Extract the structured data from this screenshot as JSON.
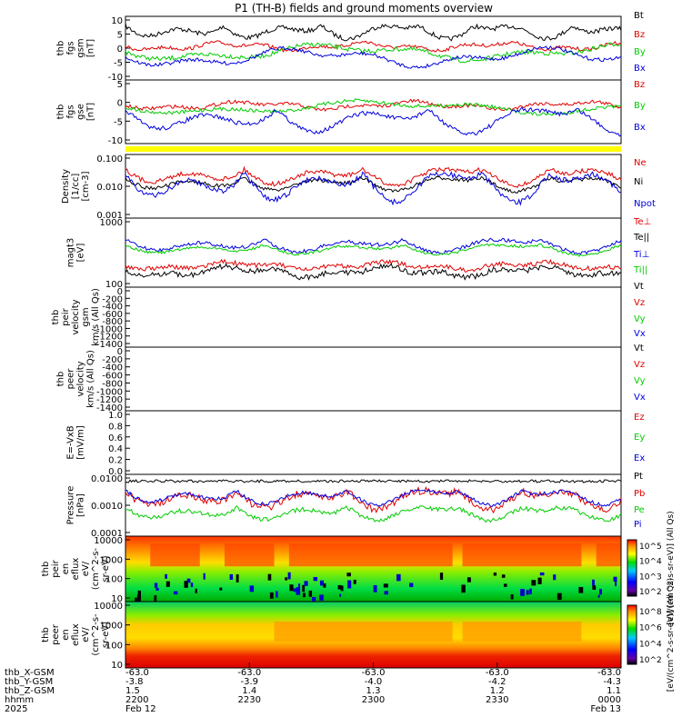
{
  "chart_data": {
    "type": "line",
    "title": "P1 (TH-B) fields and ground moments overview",
    "colors": {
      "black": "#000000",
      "red": "#e00000",
      "green": "#00cc00",
      "blue": "#0000dd",
      "yellow": "#ffff00"
    },
    "panels": [
      {
        "id": "fgs-gsm",
        "ylabel": [
          "thb",
          "fgs",
          "gsm",
          "[nT]"
        ],
        "yticks": [
          "10",
          "5",
          "0",
          "-5",
          "-10"
        ],
        "legend": [
          {
            "label": "Bt",
            "color": "black"
          },
          {
            "label": "Bz",
            "color": "red"
          },
          {
            "label": "By",
            "color": "green"
          },
          {
            "label": "Bx",
            "color": "blue"
          }
        ]
      },
      {
        "id": "fgs-gse",
        "ylabel": [
          "thb",
          "fgs",
          "gse",
          "[nT]"
        ],
        "yticks": [
          "5",
          "0",
          "-5",
          "-10"
        ],
        "legend": [
          {
            "label": "Bz",
            "color": "red"
          },
          {
            "label": "By",
            "color": "green"
          },
          {
            "label": "Bx",
            "color": "blue"
          }
        ]
      },
      {
        "id": "density",
        "ylabel": [
          "Density",
          "[1/cc]",
          "[cm-3]"
        ],
        "yticks": [
          "0.100",
          "0.010",
          "0.001"
        ],
        "log": true,
        "legend": [
          {
            "label": "Ne",
            "color": "red"
          },
          {
            "label": "Ni",
            "color": "black"
          },
          {
            "label": "Npot",
            "color": "blue"
          }
        ]
      },
      {
        "id": "temperature",
        "ylabel": [
          "magt3",
          "[eV]"
        ],
        "yticks": [
          "1000",
          "100"
        ],
        "log": true,
        "legend": [
          {
            "label": "Te⊥",
            "color": "red"
          },
          {
            "label": "Te||",
            "color": "black"
          },
          {
            "label": "Ti⊥",
            "color": "blue"
          },
          {
            "label": "Ti||",
            "color": "green"
          }
        ]
      },
      {
        "id": "peir-velocity",
        "ylabel": [
          "thb",
          "peir",
          "velocity",
          "gsm",
          "km/s (All Qs)"
        ],
        "yticks": [
          "0",
          "-200",
          "-400",
          "-600",
          "-800",
          "-1000",
          "-1200",
          "-1400"
        ],
        "legend": [
          {
            "label": "Vt",
            "color": "black"
          },
          {
            "label": "Vz",
            "color": "red"
          },
          {
            "label": "Vy",
            "color": "green"
          },
          {
            "label": "Vx",
            "color": "blue"
          }
        ]
      },
      {
        "id": "peer-velocity",
        "ylabel": [
          "thb",
          "peer",
          "velocity",
          "km/s (All Qs)"
        ],
        "yticks": [
          "0",
          "-200",
          "-400",
          "-600",
          "-800",
          "-1000",
          "-1200",
          "-1400"
        ],
        "legend": [
          {
            "label": "Vt",
            "color": "black"
          },
          {
            "label": "Vz",
            "color": "red"
          },
          {
            "label": "Vy",
            "color": "green"
          },
          {
            "label": "Vx",
            "color": "blue"
          }
        ]
      },
      {
        "id": "efield",
        "ylabel": [
          "E=-VxB",
          "[mV/m]"
        ],
        "yticks": [
          "1.0",
          "0.8",
          "0.6",
          "0.4",
          "0.2",
          "0.0"
        ],
        "legend": [
          {
            "label": "Ez",
            "color": "red"
          },
          {
            "label": "Ey",
            "color": "green"
          },
          {
            "label": "Ex",
            "color": "blue"
          }
        ]
      },
      {
        "id": "pressure",
        "ylabel": [
          "Pressure",
          "[nPa]"
        ],
        "yticks": [
          "0.0100",
          "0.0010",
          "0.0001"
        ],
        "log": true,
        "legend": [
          {
            "label": "Pt",
            "color": "black"
          },
          {
            "label": "Pb",
            "color": "red"
          },
          {
            "label": "Pe",
            "color": "green"
          },
          {
            "label": "Pi",
            "color": "blue"
          }
        ]
      },
      {
        "id": "peir-spec",
        "ylabel": [
          "thb",
          "peir",
          "en",
          "eflux",
          "eV/",
          "(cm^2-s-",
          "sr-eV)"
        ],
        "yticks": [
          "10000",
          "1000",
          "100",
          "10"
        ],
        "spectrogram": "ion"
      },
      {
        "id": "peer-spec",
        "ylabel": [
          "thb",
          "peer",
          "en",
          "eflux",
          "eV/",
          "(cm^2-s-",
          "sr-eV)"
        ],
        "yticks": [
          "10000",
          "1000",
          "100",
          "10"
        ],
        "spectrogram": "electron"
      }
    ],
    "colorbars": [
      {
        "ticks": [
          "10^5",
          "10^4",
          "10^3",
          "10^2"
        ],
        "label": "[eV/(cm^2-s-sr-eV)] (All Qs)"
      },
      {
        "ticks": [
          "10^8",
          "10^6",
          "10^4",
          "10^2"
        ],
        "label": "[eV/(cm^2-s-sr-eV)] (All Qs)"
      }
    ],
    "xaxis": {
      "row_labels": [
        "thb_X-GSM",
        "thb_Y-GSM",
        "thb_Z-GSM",
        "hhmm",
        "2025"
      ],
      "ticks": [
        {
          "x": "-63.0",
          "y": "-3.8",
          "z": "1.5",
          "t": "2200",
          "d": "Feb 12"
        },
        {
          "x": "-63.0",
          "y": "-3.9",
          "z": "1.4",
          "t": "2230",
          "d": ""
        },
        {
          "x": "-63.0",
          "y": "-4.0",
          "z": "1.3",
          "t": "2300",
          "d": ""
        },
        {
          "x": "-63.0",
          "y": "-4.2",
          "z": "1.2",
          "t": "2330",
          "d": ""
        },
        {
          "x": "-63.0",
          "y": "-4.3",
          "z": "1.1",
          "t": "0000",
          "d": "Feb 13"
        }
      ]
    }
  }
}
